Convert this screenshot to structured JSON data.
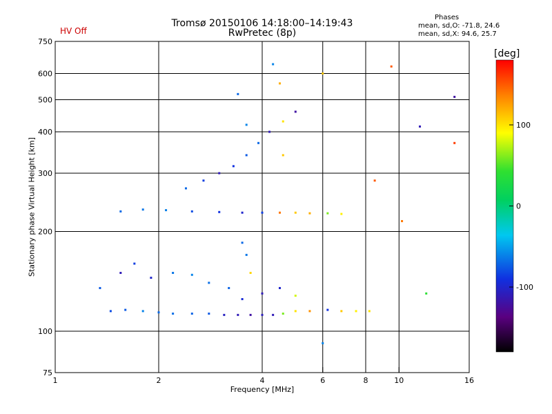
{
  "header": {
    "title_line1": "Tromsø 20150106 14:18:00–14:19:43",
    "title_line2": "RwPretec (8p)",
    "hv_status": "HV Off",
    "hv_color": "#cc0000",
    "phases_heading": "Phases",
    "phase_o": "mean, sd,O: -71.8, 24.6",
    "phase_x": "mean, sd,X:  94.6, 25.7"
  },
  "colorbar": {
    "label": "[deg]",
    "ticks": [
      {
        "value": 100,
        "label": "100"
      },
      {
        "value": 0,
        "label": "0"
      },
      {
        "value": -100,
        "label": "-100"
      }
    ],
    "range": [
      -180,
      180
    ]
  },
  "chart_data": {
    "type": "scatter",
    "xlabel": "Frequency [MHz]",
    "ylabel": "Stationary phase Virtual Height [km]",
    "x_scale": "log",
    "y_scale": "log",
    "xlim": [
      1,
      16
    ],
    "ylim": [
      75,
      750
    ],
    "x_ticks": [
      {
        "value": 1,
        "label": "1"
      },
      {
        "value": 2,
        "label": "2"
      },
      {
        "value": 4,
        "label": "4"
      },
      {
        "value": 6,
        "label": "6"
      },
      {
        "value": 8,
        "label": "8"
      },
      {
        "value": 10,
        "label": "10"
      },
      {
        "value": 16,
        "label": "16"
      }
    ],
    "y_ticks": [
      {
        "value": 75,
        "label": "75"
      },
      {
        "value": 100,
        "label": "100"
      },
      {
        "value": 200,
        "label": "200"
      },
      {
        "value": 300,
        "label": "300"
      },
      {
        "value": 400,
        "label": "400"
      },
      {
        "value": 500,
        "label": "500"
      },
      {
        "value": 600,
        "label": "600"
      },
      {
        "value": 750,
        "label": "750"
      }
    ],
    "grid_x": [
      2,
      4,
      6,
      8,
      10
    ],
    "grid_y": [
      100,
      200,
      300,
      400,
      500,
      600
    ],
    "points": [
      {
        "x": 1.45,
        "y": 115,
        "phase": -80
      },
      {
        "x": 1.6,
        "y": 116,
        "phase": -75
      },
      {
        "x": 1.8,
        "y": 115,
        "phase": -60
      },
      {
        "x": 2.0,
        "y": 114,
        "phase": -70
      },
      {
        "x": 2.2,
        "y": 113,
        "phase": -68
      },
      {
        "x": 2.5,
        "y": 113,
        "phase": -72
      },
      {
        "x": 2.8,
        "y": 113,
        "phase": -75
      },
      {
        "x": 3.1,
        "y": 112,
        "phase": -105
      },
      {
        "x": 3.4,
        "y": 112,
        "phase": -110
      },
      {
        "x": 3.7,
        "y": 112,
        "phase": -120
      },
      {
        "x": 4.0,
        "y": 112,
        "phase": -108
      },
      {
        "x": 4.3,
        "y": 112,
        "phase": -110
      },
      {
        "x": 4.6,
        "y": 113,
        "phase": 60
      },
      {
        "x": 5.0,
        "y": 115,
        "phase": 100
      },
      {
        "x": 5.5,
        "y": 115,
        "phase": 130
      },
      {
        "x": 6.2,
        "y": 116,
        "phase": -90
      },
      {
        "x": 6.8,
        "y": 115,
        "phase": 110
      },
      {
        "x": 7.5,
        "y": 115,
        "phase": 95
      },
      {
        "x": 8.2,
        "y": 115,
        "phase": 100
      },
      {
        "x": 1.35,
        "y": 135,
        "phase": -75
      },
      {
        "x": 1.55,
        "y": 150,
        "phase": -110
      },
      {
        "x": 1.7,
        "y": 160,
        "phase": -85
      },
      {
        "x": 1.9,
        "y": 145,
        "phase": -100
      },
      {
        "x": 2.2,
        "y": 150,
        "phase": -65
      },
      {
        "x": 2.5,
        "y": 148,
        "phase": -60
      },
      {
        "x": 2.8,
        "y": 140,
        "phase": -68
      },
      {
        "x": 3.2,
        "y": 135,
        "phase": -72
      },
      {
        "x": 3.5,
        "y": 125,
        "phase": -95
      },
      {
        "x": 4.0,
        "y": 130,
        "phase": -110
      },
      {
        "x": 4.5,
        "y": 135,
        "phase": -100
      },
      {
        "x": 5.0,
        "y": 128,
        "phase": 80
      },
      {
        "x": 1.55,
        "y": 230,
        "phase": -70
      },
      {
        "x": 1.8,
        "y": 233,
        "phase": -65
      },
      {
        "x": 2.1,
        "y": 232,
        "phase": -62
      },
      {
        "x": 2.5,
        "y": 230,
        "phase": -80
      },
      {
        "x": 3.0,
        "y": 229,
        "phase": -90
      },
      {
        "x": 3.5,
        "y": 228,
        "phase": -100
      },
      {
        "x": 4.0,
        "y": 228,
        "phase": -85
      },
      {
        "x": 4.5,
        "y": 228,
        "phase": 140
      },
      {
        "x": 5.0,
        "y": 228,
        "phase": 110
      },
      {
        "x": 5.5,
        "y": 227,
        "phase": 120
      },
      {
        "x": 6.2,
        "y": 227,
        "phase": 60
      },
      {
        "x": 6.8,
        "y": 226,
        "phase": 95
      },
      {
        "x": 2.4,
        "y": 270,
        "phase": -70
      },
      {
        "x": 2.7,
        "y": 285,
        "phase": -85
      },
      {
        "x": 3.0,
        "y": 300,
        "phase": -110
      },
      {
        "x": 3.3,
        "y": 315,
        "phase": -90
      },
      {
        "x": 3.6,
        "y": 340,
        "phase": -75
      },
      {
        "x": 3.9,
        "y": 370,
        "phase": -70
      },
      {
        "x": 4.2,
        "y": 400,
        "phase": -110
      },
      {
        "x": 4.6,
        "y": 430,
        "phase": 100
      },
      {
        "x": 5.0,
        "y": 460,
        "phase": -120
      },
      {
        "x": 3.6,
        "y": 420,
        "phase": -60
      },
      {
        "x": 3.4,
        "y": 520,
        "phase": -70
      },
      {
        "x": 4.3,
        "y": 640,
        "phase": -60
      },
      {
        "x": 4.5,
        "y": 560,
        "phase": 120
      },
      {
        "x": 4.6,
        "y": 340,
        "phase": 110
      },
      {
        "x": 3.5,
        "y": 185,
        "phase": -70
      },
      {
        "x": 3.6,
        "y": 170,
        "phase": -65
      },
      {
        "x": 3.7,
        "y": 150,
        "phase": 105
      },
      {
        "x": 6.0,
        "y": 600,
        "phase": 110
      },
      {
        "x": 6.0,
        "y": 92,
        "phase": -60
      },
      {
        "x": 9.5,
        "y": 630,
        "phase": 150
      },
      {
        "x": 11.5,
        "y": 415,
        "phase": -110
      },
      {
        "x": 14.5,
        "y": 510,
        "phase": -120
      },
      {
        "x": 14.5,
        "y": 370,
        "phase": 160
      },
      {
        "x": 10.2,
        "y": 215,
        "phase": 140
      },
      {
        "x": 8.5,
        "y": 285,
        "phase": 150
      },
      {
        "x": 12.0,
        "y": 130,
        "phase": 40
      }
    ]
  }
}
